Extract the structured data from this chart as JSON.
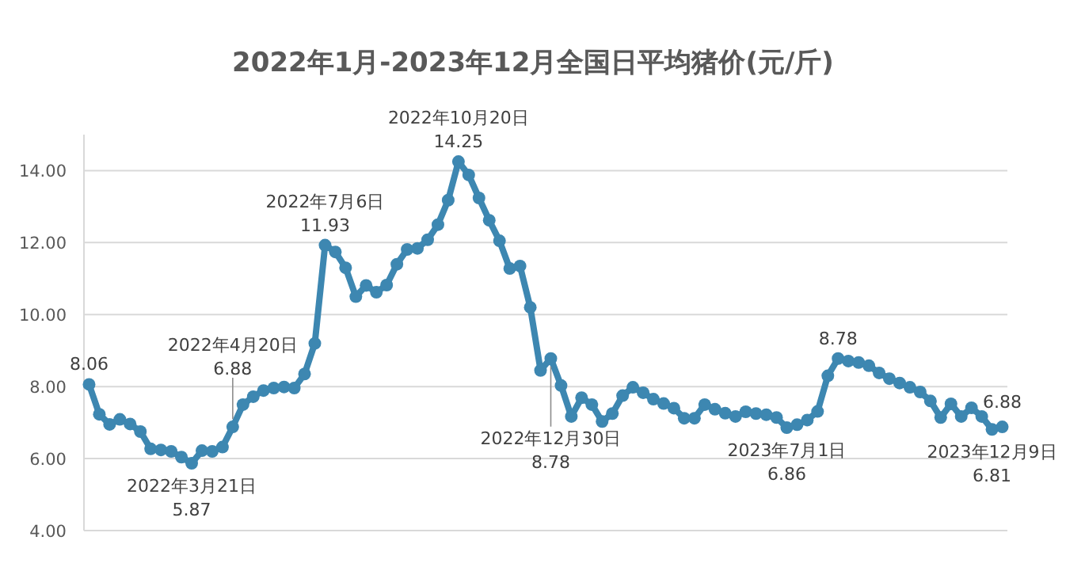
{
  "chart_data": {
    "type": "line",
    "title": "2022年1月-2023年12月全国日平均猪价(元/斤)",
    "marker": "circle",
    "grid": "y",
    "tick_labels": "y",
    "categories": [
      null,
      null,
      null,
      null,
      null,
      null,
      null,
      null,
      null,
      null,
      null,
      null,
      null,
      null,
      null,
      null,
      null,
      null,
      null,
      null,
      null,
      null,
      null,
      null,
      null,
      null,
      null,
      null,
      null,
      null,
      null,
      null,
      null,
      null,
      null,
      null,
      null,
      null,
      null,
      null,
      null,
      null,
      null,
      null,
      null,
      null,
      null,
      null,
      null,
      null,
      null,
      null,
      null,
      null,
      null,
      null,
      null,
      null,
      null,
      null,
      null,
      null,
      null,
      null,
      null,
      null,
      null,
      null,
      null,
      null,
      null,
      null,
      null,
      null,
      null,
      null,
      null,
      null,
      null,
      null,
      null,
      null,
      null,
      null,
      null,
      null,
      null,
      null,
      null,
      null
    ],
    "ylim": [
      4,
      15
    ],
    "yticks": [
      {
        "value": 4,
        "label": "4.00"
      },
      {
        "value": 6,
        "label": "6.00"
      },
      {
        "value": 8,
        "label": "8.00"
      },
      {
        "value": 10,
        "label": "10.00"
      },
      {
        "value": 12,
        "label": "12.00"
      },
      {
        "value": 14,
        "label": "14.00"
      }
    ],
    "series": [
      {
        "color": "#3d87b1",
        "values": [
          8.06,
          7.23,
          6.95,
          7.09,
          6.96,
          6.75,
          6.27,
          6.24,
          6.2,
          6.04,
          5.87,
          6.22,
          6.2,
          6.32,
          6.88,
          7.5,
          7.72,
          7.89,
          7.96,
          7.99,
          7.96,
          8.35,
          9.2,
          11.93,
          11.74,
          11.3,
          10.5,
          10.81,
          10.62,
          10.82,
          11.4,
          11.81,
          11.84,
          12.08,
          12.5,
          13.18,
          14.25,
          13.88,
          13.24,
          12.62,
          12.05,
          11.28,
          11.35,
          10.2,
          8.45,
          8.78,
          8.03,
          7.17,
          7.69,
          7.5,
          7.03,
          7.25,
          7.75,
          7.98,
          7.83,
          7.65,
          7.53,
          7.4,
          7.12,
          7.12,
          7.5,
          7.37,
          7.26,
          7.17,
          7.3,
          7.25,
          7.22,
          7.14,
          6.86,
          6.94,
          7.07,
          7.31,
          8.3,
          8.78,
          8.71,
          8.67,
          8.58,
          8.38,
          8.22,
          8.1,
          7.98,
          7.85,
          7.6,
          7.14,
          7.52,
          7.17,
          7.41,
          7.17,
          6.81,
          6.88
        ]
      }
    ],
    "annotations": [
      {
        "text": "8.06",
        "y": 8.06
      },
      {
        "text": "2022年3月21日\n5.87",
        "y": 5.87
      },
      {
        "text": "2022年4月20日\n6.88",
        "y": 6.88
      },
      {
        "text": "2022年7月6日\n11.93",
        "y": 11.93
      },
      {
        "text": "2022年10月20日\n14.25",
        "y": 14.25
      },
      {
        "text": "2022年12月30日\n8.78",
        "y": 8.78
      },
      {
        "text": "2023年7月1日\n6.86",
        "y": 6.86
      },
      {
        "text": "8.78",
        "y": 8.78
      },
      {
        "text": "2023年12月9日\n6.81",
        "y": 6.81
      },
      {
        "text": "6.88",
        "y": 6.88
      }
    ]
  }
}
